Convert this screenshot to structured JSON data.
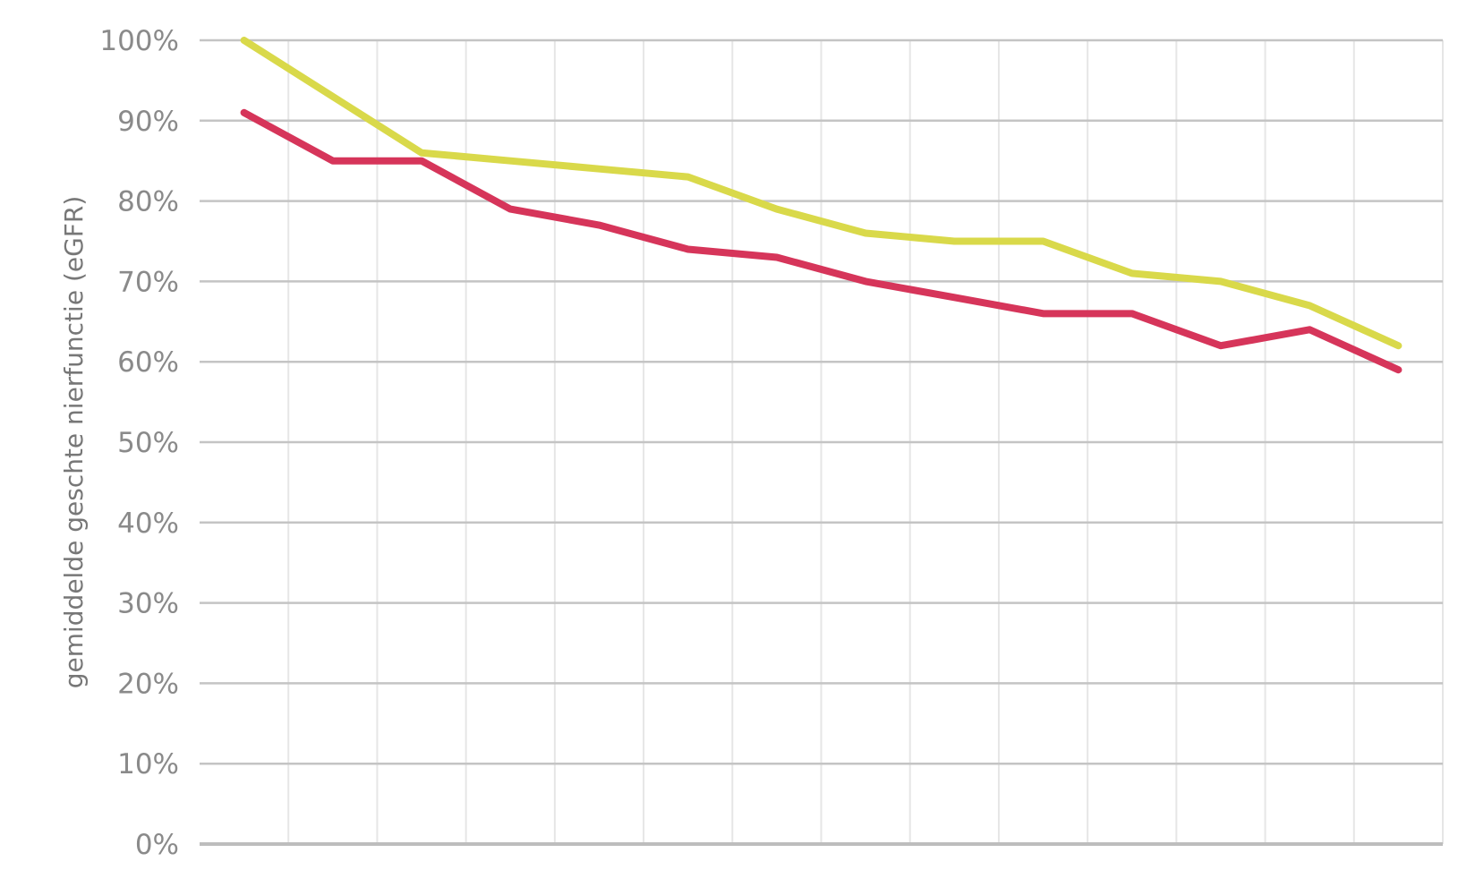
{
  "chart_data": {
    "type": "line",
    "title": "",
    "xlabel": "",
    "ylabel": "gemiddelde geschte nierfunctie (eGFR)",
    "ylim": [
      0,
      100
    ],
    "yticks": [
      "0%",
      "10%",
      "20%",
      "30%",
      "40%",
      "50%",
      "60%",
      "70%",
      "80%",
      "90%",
      "100%"
    ],
    "grid": true,
    "x": [
      1,
      2,
      3,
      4,
      5,
      6,
      7,
      8,
      9,
      10,
      11,
      12,
      13,
      14
    ],
    "series": [
      {
        "color": "#d9d94a",
        "values": [
          100,
          93,
          86,
          85,
          84,
          83,
          79,
          76,
          75,
          75,
          71,
          70,
          67,
          62
        ]
      },
      {
        "color": "#d6355a",
        "values": [
          91,
          85,
          85,
          79,
          77,
          74,
          73,
          70,
          68,
          66,
          66,
          62,
          64,
          59
        ]
      }
    ]
  }
}
